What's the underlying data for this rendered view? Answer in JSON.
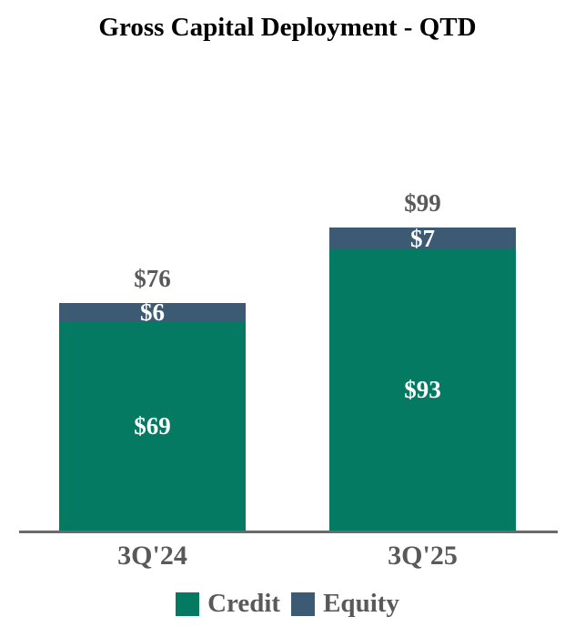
{
  "title": "Gross Capital Deployment - QTD",
  "colors": {
    "credit_green": "#047a62",
    "equity_slate": "#3c5a74",
    "label_gray": "#595959",
    "axis_line_gray": "#6a6a6a",
    "in_bar_label_white": "#ffffff",
    "title_black": "#000000",
    "background": "#ffffff"
  },
  "chart_data": {
    "type": "bar",
    "stacked": true,
    "title": "Gross Capital Deployment - QTD",
    "categories": [
      "3Q'24",
      "3Q'25"
    ],
    "series": [
      {
        "name": "Credit",
        "color": "#047a62",
        "values": [
          69,
          93
        ]
      },
      {
        "name": "Equity",
        "color": "#3c5a74",
        "values": [
          6,
          7
        ]
      }
    ],
    "totals": [
      76,
      99
    ],
    "bar_labels": {
      "totals": [
        "$76",
        "$99"
      ],
      "credit": [
        "$69",
        "$93"
      ],
      "equity": [
        "$6",
        "$7"
      ]
    },
    "legend": [
      "Credit",
      "Equity"
    ],
    "legend_position": "bottom",
    "grid": false,
    "y_axis_visible": false,
    "x_baseline_visible": true
  }
}
